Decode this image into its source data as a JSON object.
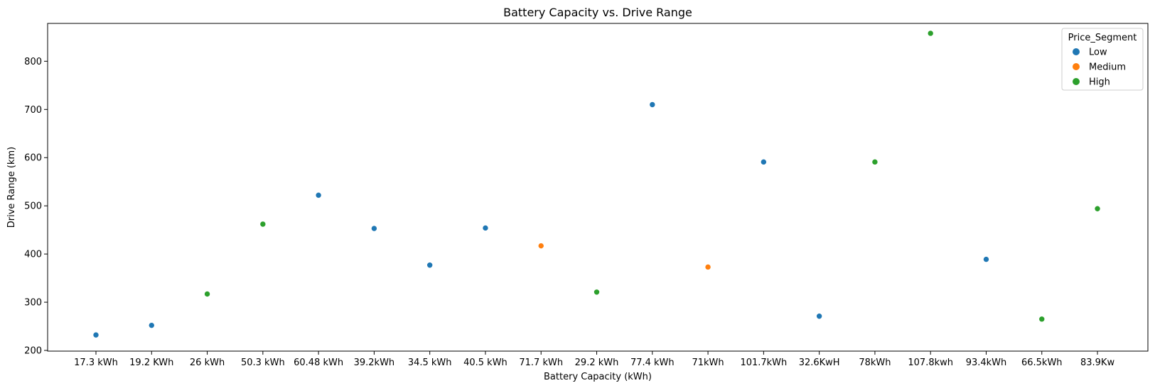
{
  "chart_data": {
    "type": "scatter",
    "title": "Battery Capacity vs. Drive Range",
    "xlabel": "Battery Capacity (kWh)",
    "ylabel": "Drive Range (km)",
    "categories": [
      "17.3 kWh",
      "19.2 KWh",
      "26 kWh",
      "50.3 kWh",
      "60.48 kWh",
      "39.2kWh",
      "34.5 kWh",
      "40.5 kWh",
      "71.7 kWh",
      "29.2 kWh",
      "77.4 kWh",
      "71kWh",
      "101.7kWh",
      "32.6KwH",
      "78kWh",
      "107.8kwh",
      "93.4kWh",
      "66.5kWh",
      "83.9Kw"
    ],
    "ylim": [
      200,
      880
    ],
    "yticks": [
      200,
      300,
      400,
      500,
      600,
      700,
      800
    ],
    "grid": false,
    "legend_position": "top-right",
    "legend_title": "Price_Segment",
    "series": [
      {
        "name": "Low",
        "color": "#1f77b4",
        "points": [
          {
            "x": "17.3 kWh",
            "y": 232
          },
          {
            "x": "19.2 KWh",
            "y": 252
          },
          {
            "x": "60.48 kWh",
            "y": 522
          },
          {
            "x": "39.2kWh",
            "y": 453
          },
          {
            "x": "34.5 kWh",
            "y": 377
          },
          {
            "x": "40.5 kWh",
            "y": 454
          },
          {
            "x": "77.4 kWh",
            "y": 710
          },
          {
            "x": "101.7kWh",
            "y": 591
          },
          {
            "x": "32.6KwH",
            "y": 271
          },
          {
            "x": "93.4kWh",
            "y": 389
          }
        ]
      },
      {
        "name": "Medium",
        "color": "#ff7f0e",
        "points": [
          {
            "x": "71.7 kWh",
            "y": 417
          },
          {
            "x": "71kWh",
            "y": 373
          }
        ]
      },
      {
        "name": "High",
        "color": "#2ca02c",
        "points": [
          {
            "x": "26 kWh",
            "y": 317
          },
          {
            "x": "50.3 kWh",
            "y": 462
          },
          {
            "x": "29.2 kWh",
            "y": 321
          },
          {
            "x": "78kWh",
            "y": 591
          },
          {
            "x": "107.8kwh",
            "y": 858
          },
          {
            "x": "66.5kWh",
            "y": 265
          },
          {
            "x": "83.9Kw",
            "y": 494
          }
        ]
      }
    ]
  }
}
